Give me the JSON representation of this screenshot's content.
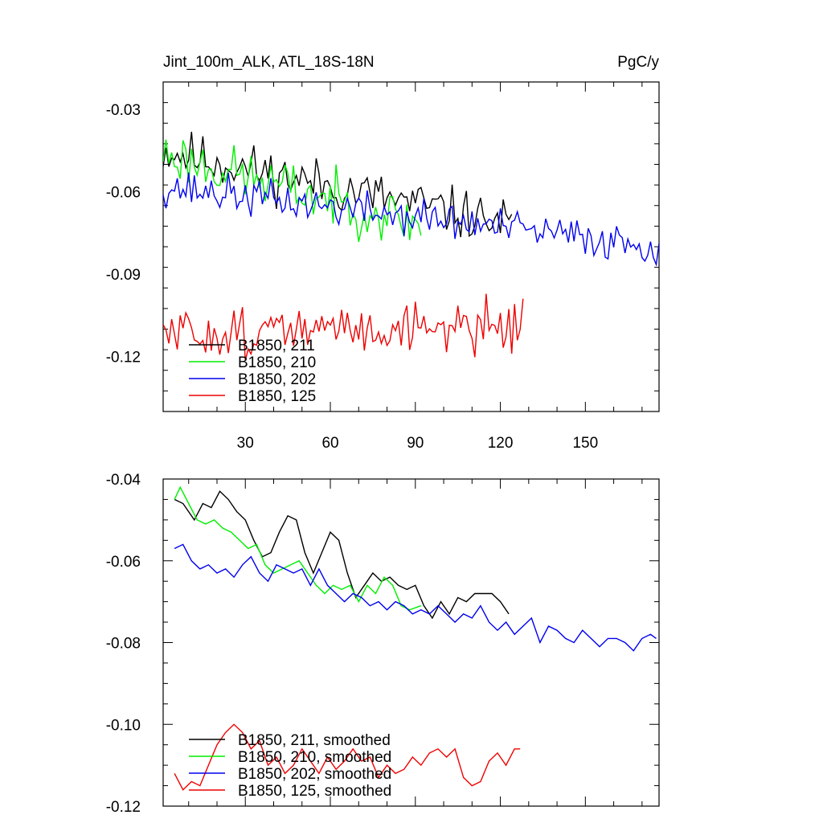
{
  "chart_data": [
    {
      "type": "line",
      "title_left": "Jint_100m_ALK, ATL_18S-18N",
      "title_right": "PgC/y",
      "xlim": [
        1,
        176
      ],
      "ylim": [
        -0.14,
        -0.02
      ],
      "xticks": [
        30,
        60,
        90,
        120,
        150
      ],
      "xtick_labels": [
        "30",
        "60",
        "90",
        "120",
        "150"
      ],
      "yticks": [
        -0.03,
        -0.06,
        -0.09,
        -0.12
      ],
      "ytick_labels": [
        "-0.03",
        "-0.06",
        "-0.09",
        "-0.12"
      ],
      "legend_position": "lower-left",
      "series": [
        {
          "name": "B1850, 211",
          "color": "#000000",
          "length": 124,
          "start": 1,
          "end": 124,
          "base_start": -0.045,
          "base_end": -0.072,
          "noise": 0.0085,
          "seed": 11
        },
        {
          "name": "B1850, 210",
          "color": "#00ee00",
          "length": 92,
          "start": 1,
          "end": 92,
          "base_start": -0.046,
          "base_end": -0.072,
          "noise": 0.009,
          "seed": 23
        },
        {
          "name": "B1850, 202",
          "color": "#0000ee",
          "length": 176,
          "start": 1,
          "end": 176,
          "base_start": -0.058,
          "base_end": -0.08,
          "noise": 0.0065,
          "seed": 37
        },
        {
          "name": "B1850, 125",
          "color": "#ee0000",
          "length": 128,
          "start": 1,
          "end": 128,
          "base_start": -0.112,
          "base_end": -0.108,
          "noise": 0.0085,
          "seed": 51
        }
      ]
    },
    {
      "type": "line",
      "xlim": [
        1,
        176
      ],
      "ylim": [
        -0.12,
        -0.04
      ],
      "xticks": [
        30,
        60,
        90,
        120,
        150
      ],
      "yticks": [
        -0.04,
        -0.06,
        -0.08,
        -0.1,
        -0.12
      ],
      "ytick_labels": [
        "-0.04",
        "-0.06",
        "-0.08",
        "-0.10",
        "-0.12"
      ],
      "legend_position": "lower-left",
      "series": [
        {
          "name": "B1850, 211, smoothed",
          "color": "#000000",
          "x": [
            5,
            8,
            12,
            15,
            18,
            21,
            24,
            27,
            30,
            33,
            36,
            39,
            42,
            45,
            48,
            51,
            54,
            57,
            60,
            63,
            66,
            69,
            72,
            75,
            78,
            81,
            84,
            87,
            90,
            93,
            96,
            99,
            102,
            105,
            108,
            111,
            114,
            117,
            120,
            123
          ],
          "y": [
            -0.045,
            -0.046,
            -0.05,
            -0.046,
            -0.047,
            -0.043,
            -0.045,
            -0.048,
            -0.05,
            -0.055,
            -0.059,
            -0.058,
            -0.053,
            -0.049,
            -0.05,
            -0.058,
            -0.063,
            -0.058,
            -0.053,
            -0.055,
            -0.063,
            -0.069,
            -0.066,
            -0.063,
            -0.065,
            -0.064,
            -0.066,
            -0.067,
            -0.066,
            -0.071,
            -0.074,
            -0.07,
            -0.073,
            -0.069,
            -0.07,
            -0.068,
            -0.068,
            -0.068,
            -0.07,
            -0.073
          ]
        },
        {
          "name": "B1850, 210, smoothed",
          "color": "#00ee00",
          "x": [
            5,
            7,
            10,
            13,
            16,
            19,
            22,
            25,
            28,
            31,
            34,
            37,
            40,
            43,
            46,
            49,
            52,
            55,
            58,
            61,
            64,
            67,
            70,
            73,
            76,
            79,
            82,
            85,
            88,
            92
          ],
          "y": [
            -0.045,
            -0.042,
            -0.046,
            -0.05,
            -0.051,
            -0.05,
            -0.052,
            -0.053,
            -0.055,
            -0.057,
            -0.056,
            -0.061,
            -0.063,
            -0.062,
            -0.061,
            -0.06,
            -0.063,
            -0.066,
            -0.068,
            -0.066,
            -0.067,
            -0.066,
            -0.07,
            -0.066,
            -0.068,
            -0.064,
            -0.066,
            -0.071,
            -0.072,
            -0.071
          ]
        },
        {
          "name": "B1850, 202, smoothed",
          "color": "#0000ee",
          "x": [
            5,
            8,
            11,
            14,
            17,
            20,
            23,
            26,
            29,
            32,
            35,
            38,
            41,
            44,
            47,
            50,
            53,
            56,
            59,
            62,
            65,
            68,
            71,
            74,
            77,
            80,
            83,
            86,
            89,
            92,
            95,
            98,
            101,
            104,
            107,
            110,
            113,
            116,
            119,
            122,
            125,
            128,
            131,
            134,
            137,
            140,
            143,
            146,
            149,
            152,
            155,
            158,
            161,
            164,
            167,
            170,
            173,
            175
          ],
          "y": [
            -0.057,
            -0.056,
            -0.06,
            -0.062,
            -0.061,
            -0.063,
            -0.062,
            -0.064,
            -0.061,
            -0.059,
            -0.063,
            -0.065,
            -0.061,
            -0.062,
            -0.063,
            -0.062,
            -0.066,
            -0.062,
            -0.066,
            -0.068,
            -0.07,
            -0.068,
            -0.069,
            -0.071,
            -0.07,
            -0.072,
            -0.07,
            -0.071,
            -0.073,
            -0.072,
            -0.073,
            -0.071,
            -0.073,
            -0.075,
            -0.073,
            -0.074,
            -0.071,
            -0.075,
            -0.077,
            -0.075,
            -0.078,
            -0.076,
            -0.074,
            -0.08,
            -0.076,
            -0.077,
            -0.079,
            -0.08,
            -0.077,
            -0.079,
            -0.081,
            -0.079,
            -0.079,
            -0.08,
            -0.082,
            -0.079,
            -0.078,
            -0.079
          ]
        },
        {
          "name": "B1850, 125, smoothed",
          "color": "#ee0000",
          "x": [
            5,
            8,
            11,
            14,
            17,
            20,
            23,
            26,
            29,
            32,
            35,
            38,
            41,
            44,
            47,
            50,
            53,
            56,
            59,
            62,
            65,
            68,
            71,
            74,
            77,
            80,
            83,
            86,
            89,
            92,
            95,
            98,
            101,
            104,
            107,
            110,
            113,
            116,
            119,
            122,
            125,
            127
          ],
          "y": [
            -0.112,
            -0.116,
            -0.114,
            -0.115,
            -0.11,
            -0.105,
            -0.102,
            -0.1,
            -0.102,
            -0.106,
            -0.104,
            -0.11,
            -0.108,
            -0.112,
            -0.11,
            -0.106,
            -0.109,
            -0.112,
            -0.108,
            -0.111,
            -0.109,
            -0.106,
            -0.109,
            -0.108,
            -0.113,
            -0.11,
            -0.112,
            -0.111,
            -0.108,
            -0.11,
            -0.107,
            -0.106,
            -0.108,
            -0.106,
            -0.113,
            -0.115,
            -0.114,
            -0.109,
            -0.107,
            -0.11,
            -0.106,
            -0.106
          ]
        }
      ]
    }
  ]
}
